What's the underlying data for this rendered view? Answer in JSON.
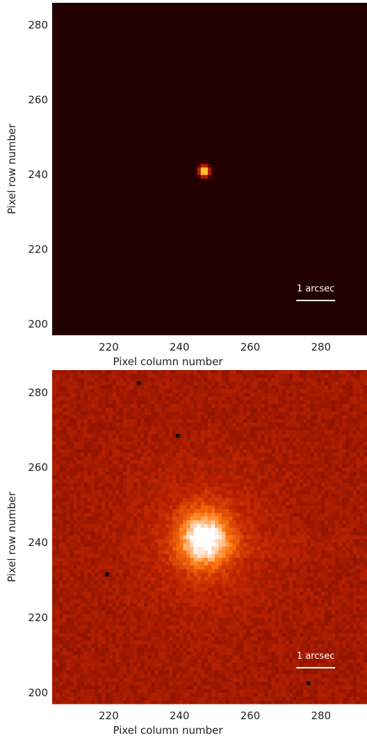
{
  "chart_data": [
    {
      "type": "heatmap",
      "name": "linear-stretch-image",
      "xlabel": "Pixel column number",
      "ylabel": "Pixel row number",
      "xlim": [
        204,
        293
      ],
      "ylim": [
        197,
        286
      ],
      "xticks": [
        220,
        240,
        260,
        280
      ],
      "yticks": [
        200,
        220,
        240,
        260,
        280
      ],
      "annotation": "1 arcsec",
      "source_center": [
        247,
        241
      ],
      "colormap": [
        "#230000",
        "#ff2a00",
        "#ffb000",
        "#ffffff"
      ]
    },
    {
      "type": "heatmap",
      "name": "log-stretch-image",
      "xlabel": "Pixel column number",
      "ylabel": "Pixel row number",
      "xlim": [
        204,
        293
      ],
      "ylim": [
        197,
        286
      ],
      "xticks": [
        220,
        240,
        260,
        280
      ],
      "yticks": [
        200,
        220,
        240,
        260,
        280
      ],
      "annotation": "1 arcsec",
      "source_center": [
        247,
        241
      ],
      "colormap": [
        "#7a0a00",
        "#c42800",
        "#ff7a10",
        "#ffffff"
      ]
    }
  ]
}
